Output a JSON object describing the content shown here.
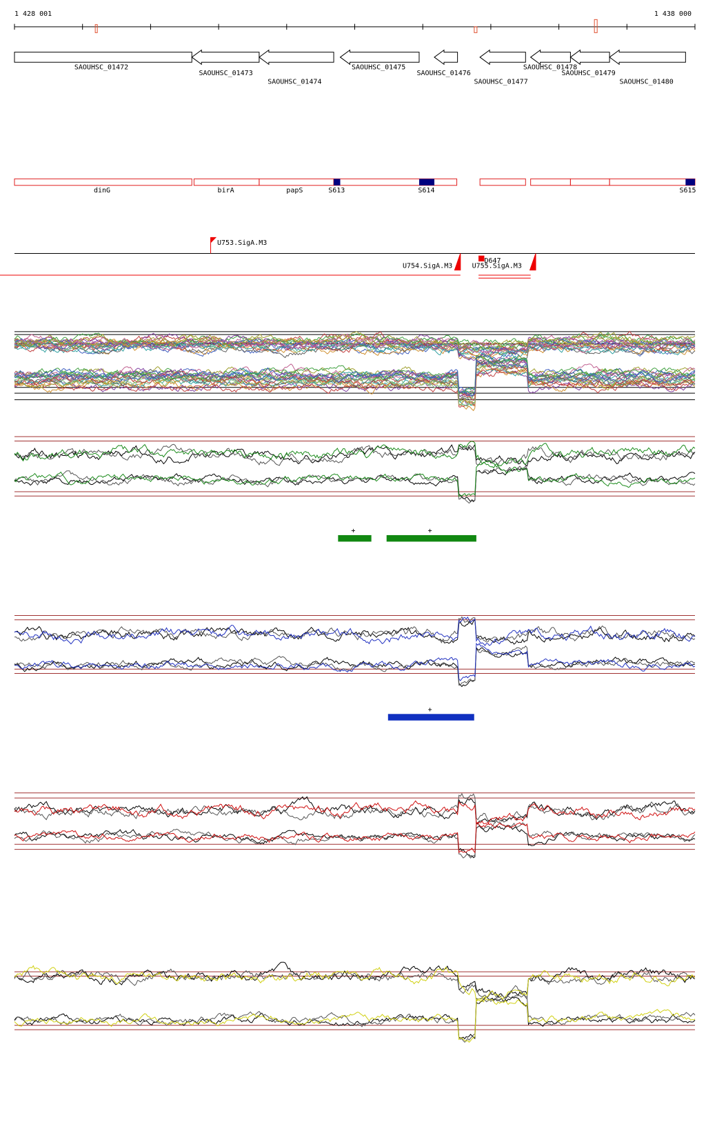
{
  "ruler": {
    "start": "1 428 001",
    "end": "1 438 000"
  },
  "genes": [
    "SAOUHSC_01472",
    "SAOUHSC_01473",
    "SAOUHSC_01474",
    "SAOUHSC_01475",
    "SAOUHSC_01476",
    "SAOUHSC_01477",
    "SAOUHSC_01478",
    "SAOUHSC_01479",
    "SAOUHSC_01480"
  ],
  "features": [
    "dinG",
    "birA",
    "papS",
    "S613",
    "S614",
    "S615"
  ],
  "promoters": [
    "U753.SigA.M3",
    "U754.SigA.M3",
    "U755.SigA.M3",
    "D647"
  ],
  "segment_labels": [
    "+",
    "+",
    "+"
  ]
}
